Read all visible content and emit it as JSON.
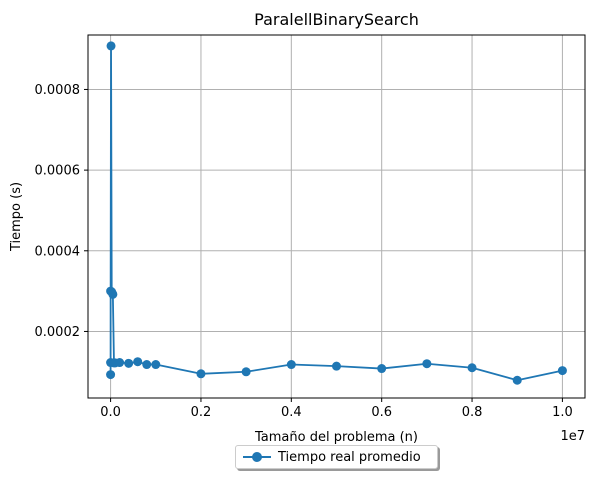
{
  "chart_data": {
    "type": "line",
    "title": "ParalellBinarySearch",
    "xlabel": "Tamaño del problema (n)",
    "ylabel": "Tiempo (s)",
    "x_offset_label": "1e7",
    "xlim": [
      -500000,
      10500000
    ],
    "ylim": [
      3.5e-05,
      0.000935
    ],
    "x_ticks": [
      0,
      2000000,
      4000000,
      6000000,
      8000000,
      10000000
    ],
    "x_tick_labels": [
      "0.0",
      "0.2",
      "0.4",
      "0.6",
      "0.8",
      "1.0"
    ],
    "y_ticks": [
      0.0002,
      0.0004,
      0.0006,
      0.0008
    ],
    "y_tick_labels": [
      "0.0002",
      "0.0004",
      "0.0006",
      "0.0008"
    ],
    "grid": true,
    "legend_position": "bottom-center",
    "series": [
      {
        "name": "Tiempo real promedio",
        "color": "#1f77b4",
        "marker": "circle",
        "x": [
          10,
          100,
          1000,
          10000,
          25000,
          50000,
          75000,
          100000,
          200000,
          400000,
          600000,
          800000,
          1000000,
          2000000,
          3000000,
          4000000,
          5000000,
          6000000,
          7000000,
          8000000,
          9000000,
          10000000
        ],
        "y": [
          9.3e-05,
          0.000123,
          0.0003,
          0.000908,
          0.000298,
          0.000292,
          0.000122,
          0.000122,
          0.000123,
          0.000121,
          0.000125,
          0.000118,
          0.000118,
          9.5e-05,
          0.0001,
          0.000118,
          0.000114,
          0.000108,
          0.00012,
          0.00011,
          7.9e-05,
          0.000103
        ]
      }
    ]
  }
}
